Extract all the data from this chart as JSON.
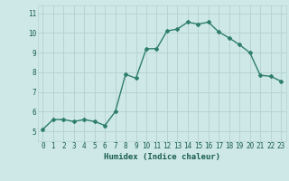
{
  "xlabel": "Humidex (Indice chaleur)",
  "x": [
    0,
    1,
    2,
    3,
    4,
    5,
    6,
    7,
    8,
    9,
    10,
    11,
    12,
    13,
    14,
    15,
    16,
    17,
    18,
    19,
    20,
    21,
    22,
    23
  ],
  "y": [
    5.1,
    5.6,
    5.6,
    5.5,
    5.6,
    5.5,
    5.3,
    6.0,
    7.9,
    7.7,
    9.2,
    9.2,
    10.1,
    10.2,
    10.55,
    10.45,
    10.55,
    10.05,
    9.75,
    9.4,
    9.0,
    7.85,
    7.8,
    7.55
  ],
  "line_color": "#2e7d6e",
  "bg_color": "#cde8e6",
  "grid_color": "#b8d4d2",
  "tick_label_color": "#1a5c52",
  "xlabel_color": "#1a5c52",
  "ylim": [
    4.5,
    11.4
  ],
  "yticks": [
    5,
    6,
    7,
    8,
    9,
    10,
    11
  ],
  "marker": "D",
  "marker_size": 2.0,
  "line_width": 1.0,
  "tick_fontsize": 5.5,
  "xlabel_fontsize": 6.5
}
